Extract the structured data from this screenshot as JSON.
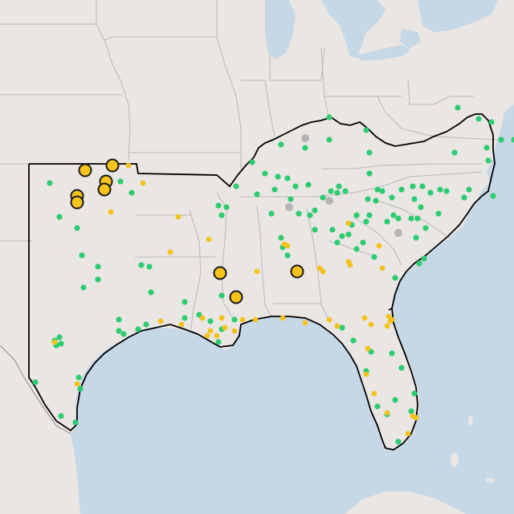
{
  "map": {
    "colors": {
      "ocean": "#c6d7e6",
      "land": "#e9e6e3",
      "lake": "#c6d7e6",
      "state_border": "#b9b9b9",
      "country_border": "#9a9a9a",
      "region_outline": "#000000",
      "station_green": "#2ecc71",
      "station_yellow": "#f4c21b",
      "station_gray": "#b5b5b5",
      "large_marker_fill": "#f6c31a",
      "large_marker_stroke": "#1a1a1a"
    },
    "legend": []
  }
}
